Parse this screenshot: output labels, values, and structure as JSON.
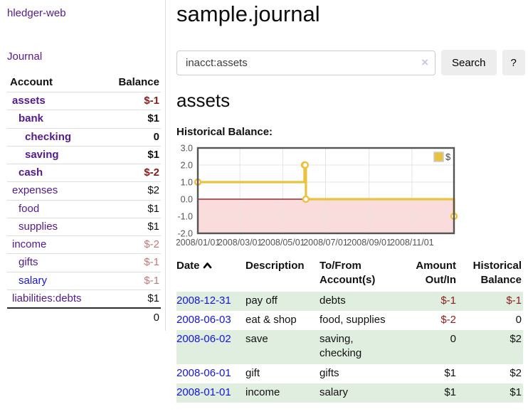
{
  "app": {
    "brand": "hledger-web",
    "nav_journal": "Journal"
  },
  "sidebar": {
    "table_headers": {
      "account": "Account",
      "balance": "Balance"
    },
    "accounts": [
      {
        "name": "assets",
        "depth": 0,
        "bold": true,
        "balance": "$-1",
        "negative": true,
        "dim": false,
        "visited": true
      },
      {
        "name": "bank",
        "depth": 1,
        "bold": true,
        "balance": "$1",
        "negative": false,
        "dim": false,
        "visited": true
      },
      {
        "name": "checking",
        "depth": 2,
        "bold": true,
        "balance": "0",
        "negative": false,
        "dim": false,
        "visited": true
      },
      {
        "name": "saving",
        "depth": 2,
        "bold": true,
        "balance": "$1",
        "negative": false,
        "dim": false,
        "visited": true
      },
      {
        "name": "cash",
        "depth": 1,
        "bold": true,
        "balance": "$-2",
        "negative": true,
        "dim": false,
        "visited": true
      },
      {
        "name": "expenses",
        "depth": 0,
        "bold": false,
        "balance": "$2",
        "negative": false,
        "dim": false,
        "visited": true
      },
      {
        "name": "food",
        "depth": 1,
        "bold": false,
        "balance": "$1",
        "negative": false,
        "dim": false,
        "visited": true
      },
      {
        "name": "supplies",
        "depth": 1,
        "bold": false,
        "balance": "$1",
        "negative": false,
        "dim": false,
        "visited": true
      },
      {
        "name": "income",
        "depth": 0,
        "bold": false,
        "balance": "$-2",
        "negative": true,
        "dim": true,
        "visited": true
      },
      {
        "name": "gifts",
        "depth": 1,
        "bold": false,
        "balance": "$-1",
        "negative": true,
        "dim": true,
        "visited": true
      },
      {
        "name": "salary",
        "depth": 1,
        "bold": false,
        "balance": "$-1",
        "negative": true,
        "dim": true,
        "visited": false
      },
      {
        "name": "liabilities:debts",
        "depth": 0,
        "bold": false,
        "balance": "$1",
        "negative": false,
        "dim": false,
        "visited": true
      }
    ],
    "total": "0"
  },
  "header": {
    "title": "sample.journal"
  },
  "search": {
    "value": "inacct:assets",
    "clear_label": "×",
    "button_label": "Search",
    "help_label": "?"
  },
  "account_page": {
    "heading": "assets",
    "chart_label": "Historical Balance:"
  },
  "chart_data": {
    "type": "line",
    "title": "Historical Balance",
    "step": true,
    "series": [
      {
        "name": "$",
        "color": "#e9c340",
        "points": [
          [
            "2008-01-01",
            1
          ],
          [
            "2008-06-01",
            2
          ],
          [
            "2008-06-02",
            2
          ],
          [
            "2008-06-03",
            0
          ],
          [
            "2008-12-31",
            -1
          ]
        ]
      }
    ],
    "xrange": [
      "2008-01-01",
      "2008-12-31"
    ],
    "ylim": [
      -2,
      3
    ],
    "yticks": [
      3,
      2,
      1,
      0,
      -1,
      -2
    ],
    "ytick_labels": [
      "3.0",
      "2.0",
      "1.0",
      "0.0",
      "-1.0",
      "-2.0"
    ],
    "xticks": [
      "2008-01-01",
      "2008-03-01",
      "2008-05-01",
      "2008-07-01",
      "2008-09-01",
      "2008-11-01"
    ],
    "xtick_labels": [
      "2008/01/01",
      "2008/03/01",
      "2008/05/01",
      "2008/07/01",
      "2008/09/01",
      "2008/11/01"
    ],
    "legend": {
      "position": "top-right",
      "label": "$"
    },
    "grid": true,
    "negative_region_color": "#fbdcdc",
    "zero_line_color": "#990000",
    "plot_border_color": "#545454",
    "axis_label_color": "#545454"
  },
  "register": {
    "headers": {
      "date": "Date",
      "description": "Description",
      "accounts": "To/From Account(s)",
      "amount": "Amount Out/In",
      "balance": "Historical Balance"
    },
    "rows": [
      {
        "date": "2008-12-31",
        "description": "pay off",
        "accounts": "debts",
        "amount": "$-1",
        "balance": "$-1"
      },
      {
        "date": "2008-06-03",
        "description": "eat & shop",
        "accounts": "food, supplies",
        "amount": "$-2",
        "balance": "0"
      },
      {
        "date": "2008-06-02",
        "description": "save",
        "accounts": "saving, checking",
        "amount": "0",
        "balance": "$2"
      },
      {
        "date": "2008-06-01",
        "description": "gift",
        "accounts": "gifts",
        "amount": "$1",
        "balance": "$2"
      },
      {
        "date": "2008-01-01",
        "description": "income",
        "accounts": "salary",
        "amount": "$1",
        "balance": "$1"
      }
    ]
  },
  "colors": {
    "link_visited_purple": "#551a8b",
    "link_unvisited_blue": "#1414e0",
    "negative_amount": "#8c1b1b",
    "negative_amount_dim": "#c27878",
    "row_stripe_green": "#dfeede",
    "button_background": "#ededed",
    "chart_line_gold": "#e9c340"
  }
}
